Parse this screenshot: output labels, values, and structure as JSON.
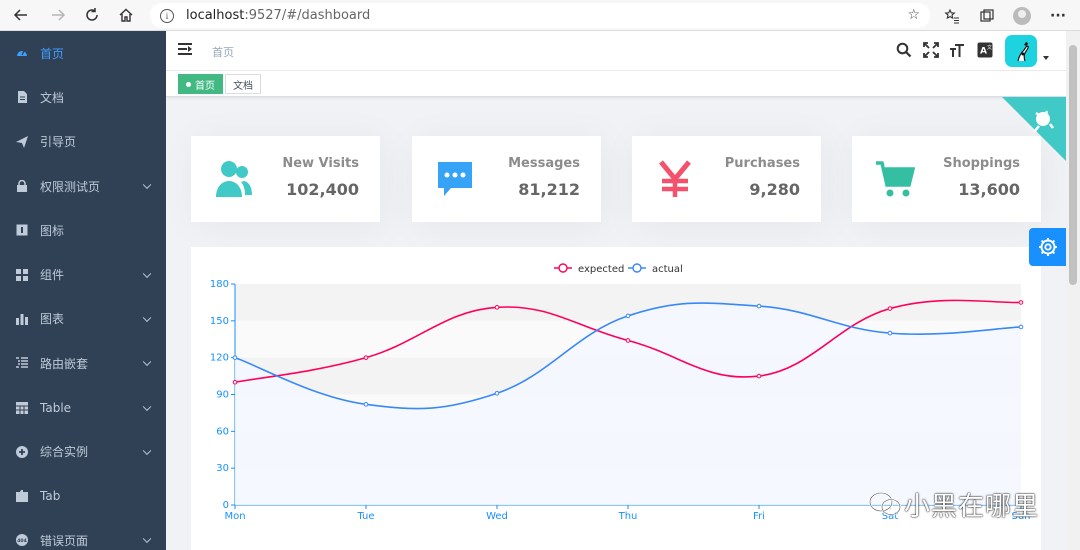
{
  "browser": {
    "url_host": "localhost",
    "url_path": ":9527/#/dashboard"
  },
  "sidebar": {
    "items": [
      {
        "label": "首页",
        "icon": "dashboard-icon",
        "active": true,
        "has_arrow": false
      },
      {
        "label": "文档",
        "icon": "document-icon",
        "active": false,
        "has_arrow": false
      },
      {
        "label": "引导页",
        "icon": "guide-icon",
        "active": false,
        "has_arrow": false
      },
      {
        "label": "权限测试页",
        "icon": "lock-icon",
        "active": false,
        "has_arrow": true
      },
      {
        "label": "图标",
        "icon": "icon-icon",
        "active": false,
        "has_arrow": false
      },
      {
        "label": "组件",
        "icon": "component-icon",
        "active": false,
        "has_arrow": true
      },
      {
        "label": "图表",
        "icon": "chart-icon",
        "active": false,
        "has_arrow": true
      },
      {
        "label": "路由嵌套",
        "icon": "nested-icon",
        "active": false,
        "has_arrow": true
      },
      {
        "label": "Table",
        "icon": "table-icon",
        "active": false,
        "has_arrow": true
      },
      {
        "label": "综合实例",
        "icon": "example-icon",
        "active": false,
        "has_arrow": true
      },
      {
        "label": "Tab",
        "icon": "tab-icon",
        "active": false,
        "has_arrow": false
      },
      {
        "label": "错误页面",
        "icon": "404-icon",
        "active": false,
        "has_arrow": true
      }
    ]
  },
  "navbar": {
    "breadcrumb": "首页"
  },
  "tags": [
    {
      "label": "首页",
      "active": true
    },
    {
      "label": "文档",
      "active": false
    }
  ],
  "panels": [
    {
      "title": "New Visits",
      "value": "102,400",
      "icon": "peoples-icon",
      "color": "#40c9c6"
    },
    {
      "title": "Messages",
      "value": "81,212",
      "icon": "message-icon",
      "color": "#36a3f7"
    },
    {
      "title": "Purchases",
      "value": "9,280",
      "icon": "money-icon",
      "color": "#f4516c"
    },
    {
      "title": "Shoppings",
      "value": "13,600",
      "icon": "shopping-icon",
      "color": "#34bfa3"
    }
  ],
  "colors": {
    "sidebar_bg": "#304156",
    "sidebar_text": "#bfcbd9",
    "sidebar_active": "#409eff",
    "tag_active": "#42b983",
    "github_corner": "#40c9c6",
    "settings_button": "#1890ff"
  },
  "watermark": "小黑在哪里",
  "chart_data": {
    "type": "line",
    "categories": [
      "Mon",
      "Tue",
      "Wed",
      "Thu",
      "Fri",
      "Sat",
      "Sun"
    ],
    "series": [
      {
        "name": "expected",
        "values": [
          100,
          120,
          161,
          134,
          105,
          160,
          165
        ],
        "color": "#ff005a"
      },
      {
        "name": "actual",
        "values": [
          120,
          82,
          91,
          154,
          162,
          140,
          145
        ],
        "color": "#3888fa"
      }
    ],
    "ylim": [
      0,
      180
    ],
    "yticks": [
      0,
      30,
      60,
      90,
      120,
      150,
      180
    ],
    "legend": "top-center",
    "smooth": true,
    "grid": "horizontal bands"
  }
}
